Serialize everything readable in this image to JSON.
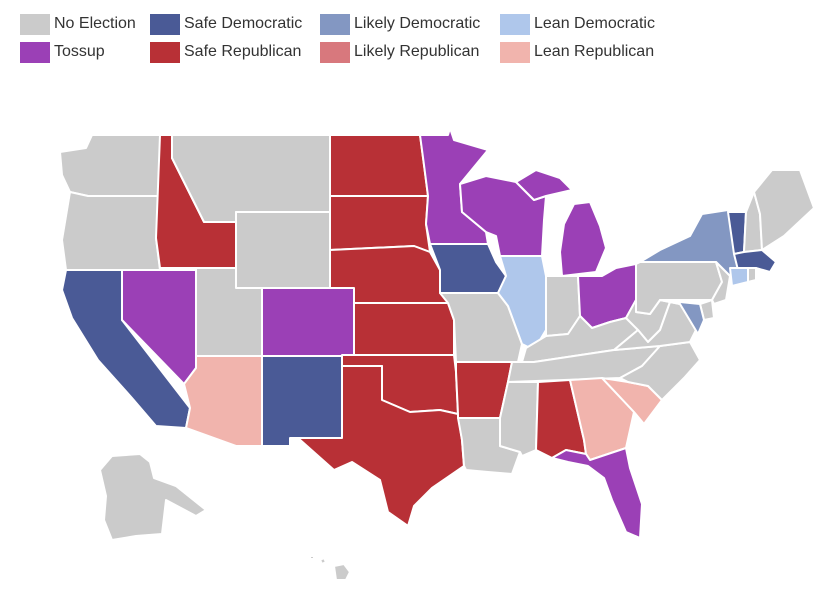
{
  "legend": {
    "items": [
      {
        "key": "none",
        "label": "No Election",
        "color": "#cbcbcb"
      },
      {
        "key": "safe_d",
        "label": "Safe Democratic",
        "color": "#4a5a96"
      },
      {
        "key": "likely_d",
        "label": "Likely Democratic",
        "color": "#8397c2"
      },
      {
        "key": "lean_d",
        "label": "Lean Democratic",
        "color": "#afc7eb"
      },
      {
        "key": "tossup",
        "label": "Tossup",
        "color": "#9b40b6"
      },
      {
        "key": "safe_r",
        "label": "Safe Republican",
        "color": "#b83036"
      },
      {
        "key": "likely_r",
        "label": "Likely Republican",
        "color": "#d8787d"
      },
      {
        "key": "lean_r",
        "label": "Lean Republican",
        "color": "#f1b4ad"
      }
    ]
  },
  "map": {
    "states": {
      "WA": "none",
      "OR": "none",
      "CA": "safe_d",
      "ID": "safe_r",
      "NV": "tossup",
      "MT": "none",
      "WY": "none",
      "UT": "none",
      "AZ": "lean_r",
      "CO": "tossup",
      "NM": "safe_d",
      "ND": "safe_r",
      "SD": "safe_r",
      "NE": "safe_r",
      "KS": "safe_r",
      "OK": "safe_r",
      "TX": "safe_r",
      "MN": "tossup",
      "IA": "safe_d",
      "MO": "none",
      "AR": "safe_r",
      "LA": "none",
      "WI": "tossup",
      "IL": "lean_d",
      "MS": "none",
      "MI": "tossup",
      "IN": "none",
      "KY": "none",
      "TN": "none",
      "AL": "safe_r",
      "OH": "tossup",
      "WV": "none",
      "VA": "none",
      "NC": "none",
      "SC": "lean_r",
      "GA": "lean_r",
      "FL": "tossup",
      "PA": "none",
      "NY": "likely_d",
      "VT": "safe_d",
      "NH": "none",
      "ME": "none",
      "MA": "safe_d",
      "CT": "lean_d",
      "RI": "none",
      "NJ": "none",
      "DE": "none",
      "MD": "likely_d",
      "AK": "none",
      "HI": "none"
    }
  }
}
